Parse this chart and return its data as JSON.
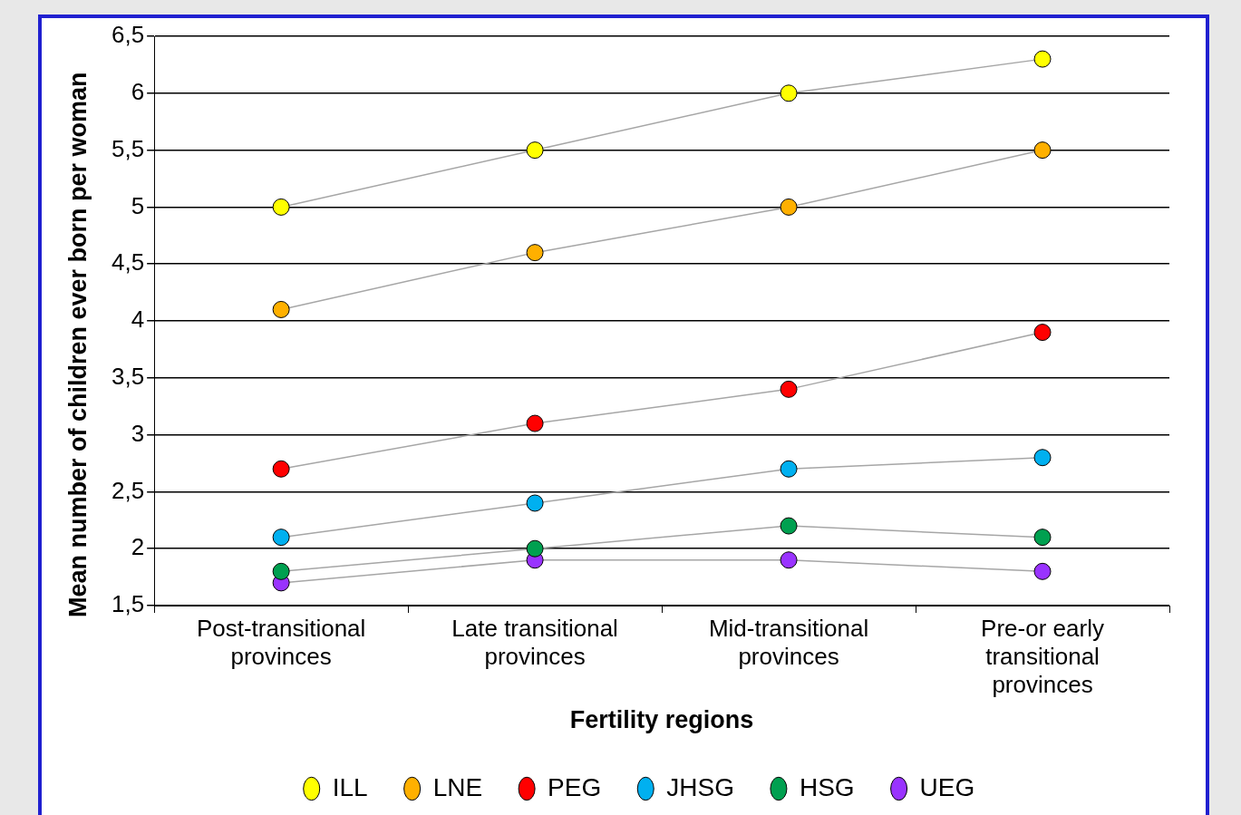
{
  "chart_data": {
    "type": "line",
    "xlabel": "Fertility regions",
    "ylabel": "Mean number of children ever born per woman",
    "categories": [
      "Post-transitional provinces",
      "Late transitional provinces",
      "Mid-transitional provinces",
      "Pre-or early transitional provinces"
    ],
    "series": [
      {
        "name": "ILL",
        "color": "#ffff00",
        "values": [
          5,
          5.5,
          6,
          6.3
        ]
      },
      {
        "name": "LNE",
        "color": "#ffb000",
        "values": [
          4.1,
          4.6,
          5,
          5.5
        ]
      },
      {
        "name": "PEG",
        "color": "#ff0000",
        "values": [
          2.7,
          3.1,
          3.4,
          3.9
        ]
      },
      {
        "name": "JHSG",
        "color": "#00b0f0",
        "values": [
          2.1,
          2.4,
          2.7,
          2.8
        ]
      },
      {
        "name": "HSG",
        "color": "#00a050",
        "values": [
          1.8,
          2.0,
          2.2,
          2.1
        ]
      },
      {
        "name": "UEG",
        "color": "#9933ff",
        "values": [
          1.7,
          1.9,
          1.9,
          1.8
        ]
      }
    ],
    "ylim": [
      1.5,
      6.5
    ],
    "yticks": [
      {
        "value": 1.5,
        "label": "1,5"
      },
      2,
      {
        "value": 2.5,
        "label": "2,5"
      },
      3,
      {
        "value": 3.5,
        "label": "3,5"
      },
      4,
      {
        "value": 4.5,
        "label": "4,5"
      },
      5,
      {
        "value": 5.5,
        "label": "5,5"
      },
      6,
      {
        "value": 6.5,
        "label": "6,5"
      }
    ],
    "grid": "y",
    "legend": "bottom",
    "marker": "circle",
    "line_style": "solid"
  }
}
